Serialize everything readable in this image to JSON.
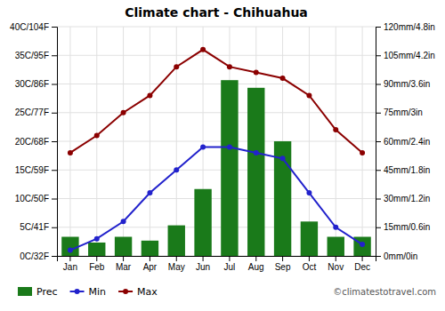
{
  "chart_data": {
    "type": "bar",
    "title": "Climate chart - Chihuahua",
    "categories": [
      "Jan",
      "Feb",
      "Mar",
      "Apr",
      "May",
      "Jun",
      "Jul",
      "Aug",
      "Sep",
      "Oct",
      "Nov",
      "Dec"
    ],
    "series": [
      {
        "name": "Prec",
        "type": "bar",
        "axis": "y2",
        "color": "#1a7a1a",
        "values": [
          10,
          7,
          10,
          8,
          16,
          35,
          92,
          88,
          60,
          18,
          10,
          10
        ]
      },
      {
        "name": "Min",
        "type": "line",
        "marker": "circle",
        "color": "#2222cc",
        "values": [
          1,
          3,
          6,
          11,
          15,
          19,
          19,
          18,
          17,
          11,
          5,
          2
        ]
      },
      {
        "name": "Max",
        "type": "line",
        "marker": "circle",
        "color": "#8b0000",
        "values": [
          18,
          21,
          25,
          28,
          33,
          36,
          33,
          32,
          31,
          28,
          22,
          18
        ]
      }
    ],
    "ylim": [
      0,
      40
    ],
    "yticks": [
      {
        "value": 0,
        "label": "0C/32F"
      },
      {
        "value": 5,
        "label": "5C/41F"
      },
      {
        "value": 10,
        "label": "10C/50F"
      },
      {
        "value": 15,
        "label": "15C/59F"
      },
      {
        "value": 20,
        "label": "20C/68F"
      },
      {
        "value": 25,
        "label": "25C/77F"
      },
      {
        "value": 30,
        "label": "30C/86F"
      },
      {
        "value": 35,
        "label": "35C/95F"
      },
      {
        "value": 40,
        "label": "40C/104F"
      }
    ],
    "y2lim": [
      0,
      120
    ],
    "y2ticks": [
      {
        "value": 0,
        "label": "0mm/0in"
      },
      {
        "value": 15,
        "label": "15mm/0.6in"
      },
      {
        "value": 30,
        "label": "30mm/1.2in"
      },
      {
        "value": 45,
        "label": "45mm/1.8in"
      },
      {
        "value": 60,
        "label": "60mm/2.4in"
      },
      {
        "value": 75,
        "label": "75mm/3in"
      },
      {
        "value": 90,
        "label": "90mm/3.6in"
      },
      {
        "value": 105,
        "label": "105mm/4.2in"
      },
      {
        "value": 120,
        "label": "120mm/4.8in"
      }
    ],
    "grid": true,
    "legend": "bottom-left",
    "annotations": [
      "©climatestotravel.com"
    ]
  }
}
